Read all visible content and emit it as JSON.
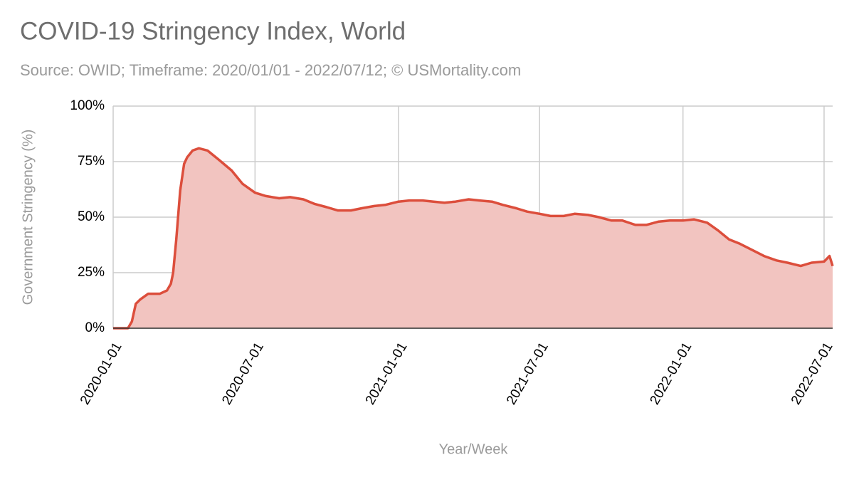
{
  "chart_data": {
    "type": "area",
    "title": "COVID-19 Stringency Index, World",
    "subtitle": "Source: OWID; Timeframe: 2020/01/01 - 2022/07/12; © USMortality.com",
    "x_label": "Year/Week",
    "y_label": "Government Stringency (%)",
    "x": [
      "2020-01-01",
      "2020-01-20",
      "2020-01-25",
      "2020-01-30",
      "2020-02-05",
      "2020-02-15",
      "2020-03-01",
      "2020-03-10",
      "2020-03-15",
      "2020-03-18",
      "2020-03-22",
      "2020-03-27",
      "2020-04-01",
      "2020-04-05",
      "2020-04-12",
      "2020-04-20",
      "2020-05-01",
      "2020-05-15",
      "2020-06-01",
      "2020-06-15",
      "2020-07-01",
      "2020-07-15",
      "2020-08-01",
      "2020-08-15",
      "2020-09-01",
      "2020-09-15",
      "2020-10-01",
      "2020-10-15",
      "2020-11-01",
      "2020-11-15",
      "2020-12-01",
      "2020-12-15",
      "2021-01-01",
      "2021-01-15",
      "2021-02-01",
      "2021-02-15",
      "2021-03-01",
      "2021-03-15",
      "2021-04-01",
      "2021-04-15",
      "2021-05-01",
      "2021-05-15",
      "2021-06-01",
      "2021-06-15",
      "2021-07-01",
      "2021-07-15",
      "2021-08-01",
      "2021-08-15",
      "2021-09-01",
      "2021-09-15",
      "2021-10-01",
      "2021-10-15",
      "2021-11-01",
      "2021-11-15",
      "2021-12-01",
      "2021-12-15",
      "2022-01-01",
      "2022-01-15",
      "2022-02-01",
      "2022-02-15",
      "2022-03-01",
      "2022-03-15",
      "2022-04-01",
      "2022-04-15",
      "2022-05-01",
      "2022-05-15",
      "2022-06-01",
      "2022-06-15",
      "2022-07-01",
      "2022-07-08",
      "2022-07-12"
    ],
    "series": [
      {
        "name": "Stringency Index",
        "color": "#dc4e3c",
        "fill": "#f2c4c0",
        "values": [
          0,
          0,
          3,
          11,
          13,
          15.5,
          15.5,
          17,
          20,
          25,
          40,
          62,
          74,
          77,
          80,
          81,
          80,
          76,
          71,
          65,
          61,
          59.5,
          58.5,
          59,
          58,
          56,
          54.5,
          53,
          53,
          54,
          55,
          55.5,
          57,
          57.5,
          57.5,
          57,
          56.5,
          57,
          58,
          57.5,
          57,
          55.5,
          54,
          52.5,
          51.5,
          50.5,
          50.5,
          51.5,
          51,
          50,
          48.5,
          48.5,
          46.5,
          46.5,
          48,
          48.5,
          48.5,
          49,
          47.5,
          44,
          40,
          38,
          35,
          32.5,
          30.5,
          29.5,
          28,
          29.5,
          30,
          32.5,
          28
        ]
      }
    ],
    "xlim": [
      "2020-01-01",
      "2022-07-12"
    ],
    "xticks": [
      "2020-01-01",
      "2020-07-01",
      "2021-01-01",
      "2021-07-01",
      "2022-01-01",
      "2022-07-01"
    ],
    "ylim": [
      0,
      100
    ],
    "yticks": [
      {
        "value": 0,
        "label": "0%"
      },
      {
        "value": 25,
        "label": "25%"
      },
      {
        "value": 50,
        "label": "50%"
      },
      {
        "value": 75,
        "label": "75%"
      },
      {
        "value": 100,
        "label": "100%"
      }
    ],
    "grid": true
  }
}
